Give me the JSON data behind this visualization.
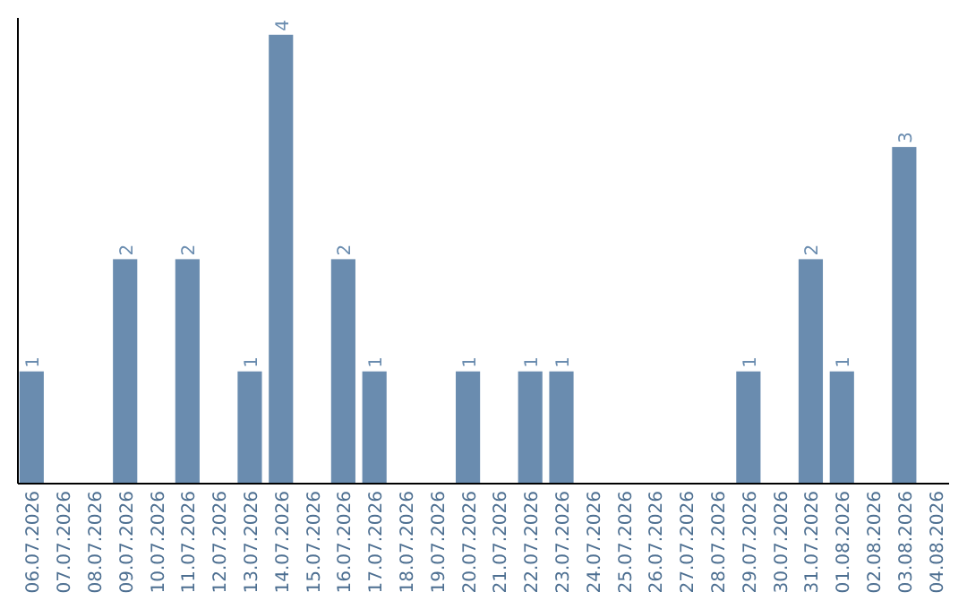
{
  "chart_data": {
    "type": "bar",
    "categories": [
      "06.07.2026",
      "07.07.2026",
      "08.07.2026",
      "09.07.2026",
      "10.07.2026",
      "11.07.2026",
      "12.07.2026",
      "13.07.2026",
      "14.07.2026",
      "15.07.2026",
      "16.07.2026",
      "17.07.2026",
      "18.07.2026",
      "19.07.2026",
      "20.07.2026",
      "21.07.2026",
      "22.07.2026",
      "23.07.2026",
      "24.07.2026",
      "25.07.2026",
      "26.07.2026",
      "27.07.2026",
      "28.07.2026",
      "29.07.2026",
      "30.07.2026",
      "31.07.2026",
      "01.08.2026",
      "02.08.2026",
      "03.08.2026",
      "04.08.2026"
    ],
    "values": [
      1,
      0,
      0,
      2,
      0,
      2,
      0,
      1,
      4,
      0,
      2,
      1,
      0,
      0,
      1,
      0,
      1,
      1,
      0,
      0,
      0,
      0,
      0,
      1,
      0,
      2,
      1,
      0,
      3,
      0
    ],
    "value_labels": [
      "1",
      null,
      null,
      "2",
      null,
      "2",
      null,
      "1",
      "4",
      null,
      "2",
      "1",
      null,
      null,
      "1",
      null,
      "1",
      "1",
      null,
      null,
      null,
      null,
      null,
      "1",
      null,
      "2",
      "1",
      null,
      "3",
      null
    ],
    "color": "#6a8caf",
    "ylim": [
      0,
      4.15
    ],
    "tick_labels": "x"
  }
}
